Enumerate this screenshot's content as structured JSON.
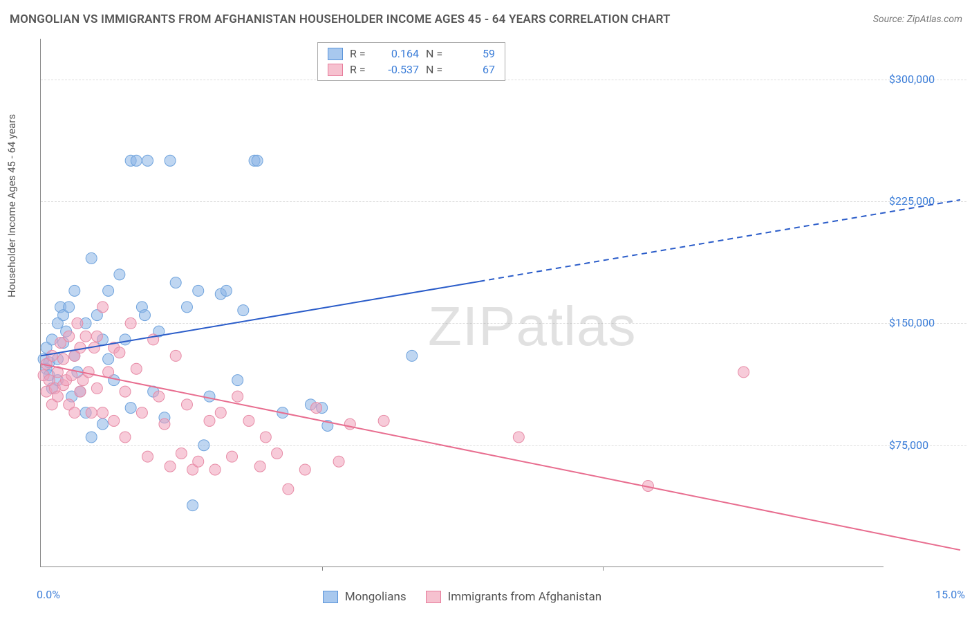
{
  "title": "MONGOLIAN VS IMMIGRANTS FROM AFGHANISTAN HOUSEHOLDER INCOME AGES 45 - 64 YEARS CORRELATION CHART",
  "source": "Source: ZipAtlas.com",
  "watermark": "ZIPatlas",
  "chart": {
    "type": "scatter",
    "ylabel": "Householder Income Ages 45 - 64 years",
    "xlim": [
      0,
      15
    ],
    "ylim": [
      0,
      325000
    ],
    "ytick_vals": [
      75000,
      150000,
      225000,
      300000
    ],
    "ytick_labels": [
      "$75,000",
      "$150,000",
      "$225,000",
      "$300,000"
    ],
    "xtick_vals": [
      0,
      15
    ],
    "xtick_labels": [
      "0.0%",
      "15.0%"
    ],
    "xtick_minor": [
      5,
      10
    ],
    "grid_color": "#dddddd",
    "axis_color": "#888888",
    "background_color": "#ffffff",
    "tick_label_color": "#3b7dd8",
    "label_fontsize": 15,
    "tick_fontsize": 16
  },
  "legend_top": [
    {
      "swatch_fill": "#a8c8ee",
      "swatch_border": "#5a94da",
      "r_label": "R =",
      "r_val": "0.164",
      "n_label": "N =",
      "n_val": "59"
    },
    {
      "swatch_fill": "#f6c1cf",
      "swatch_border": "#e77b9a",
      "r_label": "R =",
      "r_val": "-0.537",
      "n_label": "N =",
      "n_val": "67"
    }
  ],
  "legend_bottom": [
    {
      "swatch_fill": "#a8c8ee",
      "swatch_border": "#5a94da",
      "label": "Mongolians"
    },
    {
      "swatch_fill": "#f6c1cf",
      "swatch_border": "#e77b9a",
      "label": "Immigrants from Afghanistan"
    }
  ],
  "series": [
    {
      "name": "Mongolians",
      "marker_fill": "rgba(138,180,230,0.55)",
      "marker_stroke": "#6fa3dd",
      "marker_radius": 8,
      "trend_color": "#2a5cc9",
      "trend_width": 2,
      "trend_solid_xmax": 7.8,
      "trend_y_at_x0": 130000,
      "trend_y_at_x15": 218000,
      "points": [
        [
          0.05,
          128000
        ],
        [
          0.1,
          122000
        ],
        [
          0.1,
          135000
        ],
        [
          0.15,
          126000
        ],
        [
          0.15,
          118000
        ],
        [
          0.2,
          140000
        ],
        [
          0.2,
          110000
        ],
        [
          0.3,
          150000
        ],
        [
          0.3,
          115000
        ],
        [
          0.3,
          128000
        ],
        [
          0.35,
          160000
        ],
        [
          0.4,
          155000
        ],
        [
          0.4,
          138000
        ],
        [
          0.45,
          145000
        ],
        [
          0.5,
          160000
        ],
        [
          0.55,
          105000
        ],
        [
          0.6,
          130000
        ],
        [
          0.6,
          170000
        ],
        [
          0.65,
          120000
        ],
        [
          0.7,
          108000
        ],
        [
          0.8,
          150000
        ],
        [
          0.8,
          95000
        ],
        [
          0.9,
          80000
        ],
        [
          0.9,
          190000
        ],
        [
          1.0,
          155000
        ],
        [
          1.1,
          140000
        ],
        [
          1.1,
          88000
        ],
        [
          1.2,
          170000
        ],
        [
          1.2,
          128000
        ],
        [
          1.3,
          115000
        ],
        [
          1.4,
          180000
        ],
        [
          1.5,
          140000
        ],
        [
          1.6,
          98000
        ],
        [
          1.6,
          250000
        ],
        [
          1.7,
          250000
        ],
        [
          1.8,
          160000
        ],
        [
          1.85,
          155000
        ],
        [
          1.9,
          250000
        ],
        [
          2.0,
          108000
        ],
        [
          2.1,
          145000
        ],
        [
          2.2,
          92000
        ],
        [
          2.3,
          250000
        ],
        [
          2.4,
          175000
        ],
        [
          2.6,
          160000
        ],
        [
          2.7,
          38000
        ],
        [
          2.8,
          170000
        ],
        [
          2.9,
          75000
        ],
        [
          3.0,
          105000
        ],
        [
          3.2,
          168000
        ],
        [
          3.3,
          170000
        ],
        [
          3.5,
          115000
        ],
        [
          3.6,
          158000
        ],
        [
          3.8,
          250000
        ],
        [
          3.85,
          250000
        ],
        [
          4.3,
          95000
        ],
        [
          4.8,
          100000
        ],
        [
          5.0,
          98000
        ],
        [
          5.1,
          87000
        ],
        [
          6.6,
          130000
        ]
      ]
    },
    {
      "name": "Immigrants from Afghanistan",
      "marker_fill": "rgba(240,160,185,0.55)",
      "marker_stroke": "#e78ba6",
      "marker_radius": 8,
      "trend_color": "#e86d8f",
      "trend_width": 2,
      "trend_solid_xmax": 15,
      "trend_y_at_x0": 125000,
      "trend_y_at_x15": 20000,
      "points": [
        [
          0.05,
          118000
        ],
        [
          0.1,
          125000
        ],
        [
          0.1,
          108000
        ],
        [
          0.15,
          115000
        ],
        [
          0.2,
          100000
        ],
        [
          0.2,
          130000
        ],
        [
          0.25,
          110000
        ],
        [
          0.3,
          120000
        ],
        [
          0.3,
          105000
        ],
        [
          0.35,
          138000
        ],
        [
          0.4,
          128000
        ],
        [
          0.4,
          112000
        ],
        [
          0.45,
          115000
        ],
        [
          0.5,
          142000
        ],
        [
          0.5,
          100000
        ],
        [
          0.55,
          118000
        ],
        [
          0.6,
          130000
        ],
        [
          0.6,
          95000
        ],
        [
          0.65,
          150000
        ],
        [
          0.7,
          135000
        ],
        [
          0.7,
          108000
        ],
        [
          0.75,
          115000
        ],
        [
          0.8,
          142000
        ],
        [
          0.85,
          120000
        ],
        [
          0.9,
          95000
        ],
        [
          0.95,
          135000
        ],
        [
          1.0,
          110000
        ],
        [
          1.0,
          142000
        ],
        [
          1.1,
          160000
        ],
        [
          1.1,
          95000
        ],
        [
          1.2,
          120000
        ],
        [
          1.3,
          135000
        ],
        [
          1.3,
          90000
        ],
        [
          1.4,
          132000
        ],
        [
          1.5,
          108000
        ],
        [
          1.5,
          80000
        ],
        [
          1.6,
          150000
        ],
        [
          1.7,
          122000
        ],
        [
          1.8,
          95000
        ],
        [
          1.9,
          68000
        ],
        [
          2.0,
          140000
        ],
        [
          2.1,
          105000
        ],
        [
          2.2,
          88000
        ],
        [
          2.3,
          62000
        ],
        [
          2.4,
          130000
        ],
        [
          2.5,
          70000
        ],
        [
          2.6,
          100000
        ],
        [
          2.7,
          60000
        ],
        [
          2.8,
          65000
        ],
        [
          3.0,
          90000
        ],
        [
          3.1,
          60000
        ],
        [
          3.2,
          95000
        ],
        [
          3.4,
          68000
        ],
        [
          3.5,
          105000
        ],
        [
          3.7,
          90000
        ],
        [
          3.9,
          62000
        ],
        [
          4.0,
          80000
        ],
        [
          4.2,
          70000
        ],
        [
          4.4,
          48000
        ],
        [
          4.7,
          60000
        ],
        [
          4.9,
          98000
        ],
        [
          5.3,
          65000
        ],
        [
          5.5,
          88000
        ],
        [
          6.1,
          90000
        ],
        [
          8.5,
          80000
        ],
        [
          10.8,
          50000
        ],
        [
          12.5,
          120000
        ]
      ]
    }
  ]
}
